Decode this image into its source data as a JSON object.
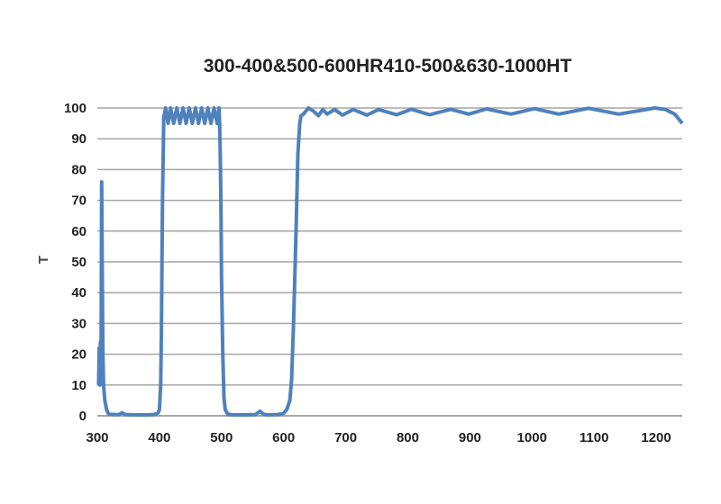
{
  "chart_data": {
    "type": "line",
    "title": "300-400&500-600HR410-500&630-1000HT",
    "xlabel": "",
    "ylabel": "T",
    "xlim": [
      300,
      1242
    ],
    "ylim": [
      0,
      100
    ],
    "xticks": [
      300,
      400,
      500,
      600,
      700,
      800,
      900,
      1000,
      1100,
      1200
    ],
    "yticks": [
      0,
      10,
      20,
      30,
      40,
      50,
      60,
      70,
      80,
      90,
      100
    ],
    "grid": "horizontal",
    "legend": "none",
    "line_color": "#4f81bd",
    "grid_color": "#a6a6a6",
    "series": [
      {
        "x": [
          302,
          303,
          304,
          305,
          306,
          307,
          308,
          309,
          310,
          312,
          315,
          318,
          325,
          335,
          340,
          345,
          360,
          380,
          390,
          395,
          398,
          400,
          402,
          403,
          405,
          407,
          410,
          414,
          418,
          423,
          428,
          433,
          438,
          443,
          448,
          453,
          458,
          463,
          468,
          473,
          478,
          483,
          488,
          493,
          496,
          497,
          498,
          499,
          500,
          502,
          504,
          506,
          510,
          520,
          540,
          555,
          562,
          568,
          575,
          590,
          600,
          605,
          610,
          613,
          616,
          620,
          623,
          626,
          628,
          632,
          636,
          640,
          648,
          656,
          663,
          670,
          682,
          695,
          712,
          734,
          753,
          782,
          806,
          835,
          869,
          898,
          927,
          966,
          1004,
          1043,
          1091,
          1140,
          1198,
          1215,
          1230,
          1242
        ],
        "y": [
          10,
          22,
          10,
          24,
          12,
          76,
          45,
          20,
          10,
          5,
          2,
          0.6,
          0.4,
          0.4,
          1,
          0.4,
          0.3,
          0.3,
          0.4,
          0.6,
          1,
          2,
          10,
          25,
          70,
          97,
          100,
          95,
          100,
          95,
          100,
          95,
          100,
          95,
          100,
          95,
          100,
          95,
          100,
          95,
          100,
          95,
          100,
          95,
          100,
          95,
          85,
          70,
          45,
          20,
          6,
          2,
          0.5,
          0.3,
          0.3,
          0.4,
          1.5,
          0.5,
          0.3,
          0.4,
          0.8,
          2,
          5,
          12,
          30,
          60,
          85,
          95,
          97.5,
          98,
          99,
          100,
          99,
          97.5,
          99.5,
          98,
          99.5,
          97.7,
          99.5,
          97.7,
          99.5,
          97.8,
          99.6,
          97.8,
          99.6,
          98,
          99.7,
          98,
          99.8,
          98,
          99.9,
          98,
          100,
          99.5,
          98,
          95
        ]
      }
    ]
  }
}
